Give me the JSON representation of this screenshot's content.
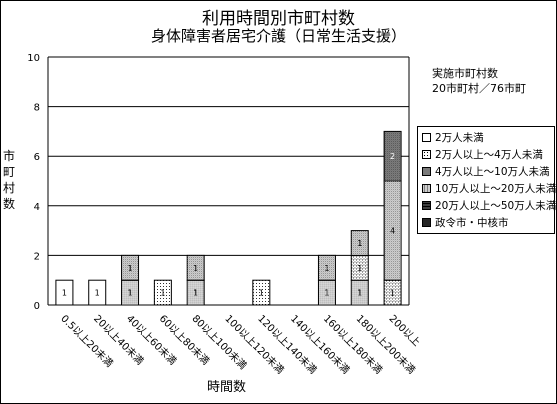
{
  "chart_data": {
    "type": "bar",
    "stacked": true,
    "title": "利用時間別市町村数",
    "subtitle": "身体障害者居宅介護（日常生活支援）",
    "ylabel": "市町村数",
    "xlabel": "時間数",
    "ylim": [
      0,
      10
    ],
    "yticks": [
      "0",
      "2",
      "4",
      "6",
      "8",
      "10"
    ],
    "note": [
      "実施市町村数",
      "20市町村／76市町"
    ],
    "categories": [
      "0.5以上20未満",
      "20以上40未満",
      "40以上60未満",
      "60以上80未満",
      "80以上100未満",
      "100以上120未満",
      "120以上140未満",
      "140以上160未満",
      "160以上180未満",
      "180以上200未満",
      "200以上"
    ],
    "series": [
      {
        "name": "2万人未満",
        "values": [
          1,
          1,
          0,
          0,
          0,
          0,
          0,
          0,
          0,
          0,
          0
        ]
      },
      {
        "name": "2万人以上～4万人未満",
        "values": [
          0,
          0,
          0,
          1,
          0,
          0,
          1,
          0,
          0,
          0,
          0
        ]
      },
      {
        "name": "4万人以上～10万人未満",
        "values": [
          0,
          0,
          1,
          0,
          1,
          0,
          0,
          0,
          1,
          1,
          0
        ]
      },
      {
        "name": "10万人以上～20万人未満",
        "values": [
          0,
          0,
          0,
          0,
          0,
          0,
          0,
          0,
          0,
          1,
          1
        ]
      },
      {
        "name": "20万人以上～50万人未満",
        "values": [
          0,
          0,
          1,
          0,
          1,
          0,
          0,
          0,
          1,
          1,
          4
        ]
      },
      {
        "name": "政令市・中核市",
        "values": [
          0,
          0,
          0,
          0,
          0,
          0,
          0,
          0,
          0,
          0,
          2
        ]
      }
    ],
    "legend_position": "right",
    "grid": true
  }
}
